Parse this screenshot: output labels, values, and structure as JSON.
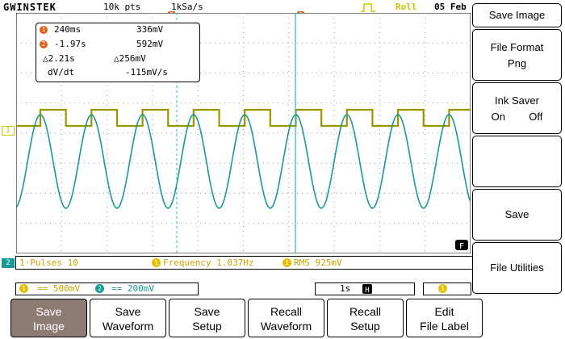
{
  "header": {
    "brand": "GWINSTEK",
    "record_length": "10k pts",
    "sample_rate": "1kSa/s",
    "mode": "Roll",
    "date": "05 Feb"
  },
  "cursor_readout": {
    "c1_time": "240ms",
    "c1_value": "336mV",
    "c2_time": "-1.97s",
    "c2_value": "592mV",
    "delta_time": "△2.21s",
    "delta_value": "△256mV",
    "dvdt_label": "dV/dt",
    "dvdt_value": "-115mV/s",
    "c1_badge": "1",
    "c2_badge": "2"
  },
  "markers": {
    "trigger_top": "F",
    "ch1": "1",
    "ch2": "2",
    "fkey": "F"
  },
  "measurements": {
    "pulses": "1·Pulses 10",
    "frequency": "Frequency 1.037Hz",
    "rms": "RMS 925mV"
  },
  "channels": {
    "ch1_scale": "== 500mV",
    "ch2_scale": "== 200mV",
    "timebase": "1s",
    "ch1_badge": "1",
    "ch2_badge": "2",
    "trig_badge": "1"
  },
  "side_menu": {
    "title": "Save Image",
    "file_format_label": "File Format",
    "file_format_value": "Png",
    "ink_saver_label": "Ink Saver",
    "ink_on": "On",
    "ink_off": "Off",
    "save": "Save",
    "file_utilities": "File Utilities"
  },
  "bottom_menu": [
    {
      "line1": "Save",
      "line2": "Image"
    },
    {
      "line1": "Save",
      "line2": "Waveform"
    },
    {
      "line1": "Save",
      "line2": "Setup"
    },
    {
      "line1": "Recall",
      "line2": "Waveform"
    },
    {
      "line1": "Recall",
      "line2": "Setup"
    },
    {
      "line1": "Edit",
      "line2": "File Label"
    }
  ],
  "colors": {
    "ch1": "#9a9600",
    "ch2": "#1a9a94",
    "cursor": "#29b8c8",
    "accent": "#e0601a"
  }
}
